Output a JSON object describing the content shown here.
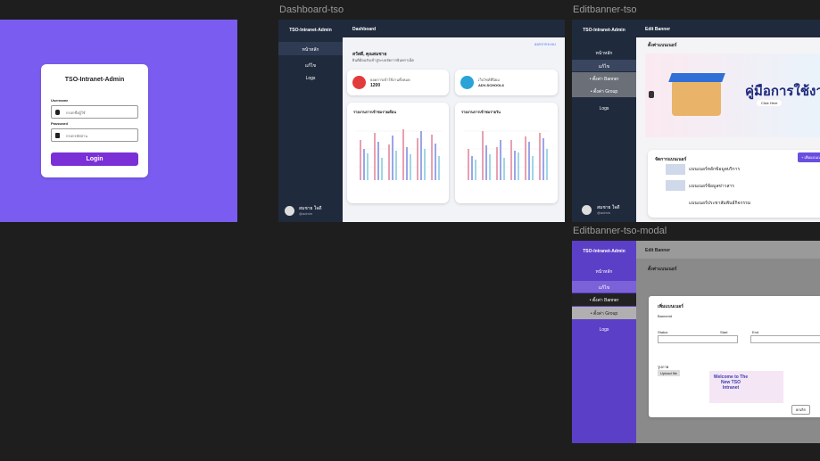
{
  "frame_labels": [
    "Dashboard-tso",
    "Editbanner-tso",
    "Editbanner-tso-modal"
  ],
  "login": {
    "title": "TSO-Intranet-Admin",
    "username_label": "Username",
    "username_placeholder": "กรอกชื่อผู้ใช้",
    "password_label": "Password",
    "password_placeholder": "กรอกรหัสผ่าน",
    "button": "Login"
  },
  "dashboard": {
    "sidebar_title": "TSO-Intranet-Admin",
    "nav": [
      "หน้าหลัก",
      "แก้ไข",
      "Logs"
    ],
    "header": "Dashboard",
    "logout": "ออกจากระบบ",
    "greeting": "สวัสดี, คุณสมชาย",
    "subtitle": "ยินดีต้อนรับเข้าสู่ระบบจัดการอินทราเน็ต",
    "stats": [
      {
        "label": "ยอดการเข้าใช้งานทั้งหมด",
        "value": "1200"
      },
      {
        "label": "เว็บไซต์ที่นิยม",
        "value": "ADV-SCHOOL6"
      }
    ],
    "charts": [
      "รายงานการเข้าชมรายเดือน",
      "รายงานการเข้าชมรายวัน"
    ],
    "user": {
      "name": "สมชาย ใจดี",
      "handle": "@admin"
    }
  },
  "editbanner": {
    "sidebar_title": "TSO-Intranet-Admin",
    "nav": [
      "หน้าหลัก",
      "แก้ไข",
      "• ตั้งค่า Banner",
      "• ตั้งค่า Group",
      "Logs"
    ],
    "header": "Edit Banner",
    "section": "ตั้งค่าแบนเนอร์",
    "banner_text": "คู่มือการใช้งาน",
    "banner_button": "Click Here",
    "list_title": "จัดการแบนเนอร์",
    "add_button": "+ เพิ่มแบนเนอร์",
    "items": [
      "แบนเนอร์หลักข้อมูลบริการ",
      "แบนเนอร์ข้อมูลข่าวสาร",
      "แบนเนอร์ประชาสัมพันธ์กิจกรรม"
    ],
    "user": {
      "name": "สมชาย ใจดี",
      "handle": "@admin"
    }
  },
  "modal": {
    "title": "เพิ่มแบนเนอร์",
    "fields": [
      "Bannerid",
      "Status",
      "Start",
      "End",
      "รูปภาพ"
    ],
    "upload": "Upload file",
    "preview": "Welcome to The New TSO Intranet",
    "cancel": "ยกเลิก"
  }
}
